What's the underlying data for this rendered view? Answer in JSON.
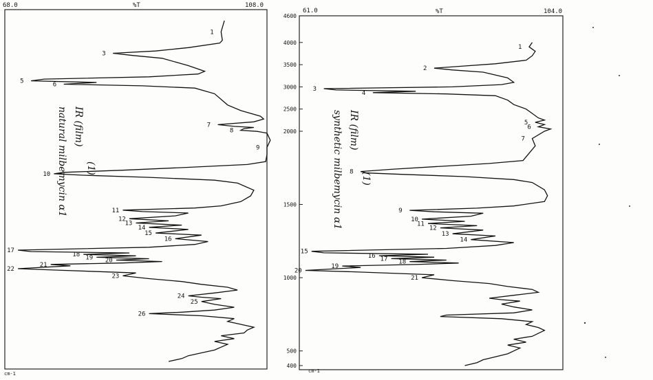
{
  "chart_data": [
    {
      "type": "line",
      "orientation": "vertical-spectrum",
      "x_axis": {
        "label": "%T",
        "min_label": "68.0",
        "max_label": "108.0",
        "range": [
          68.0,
          108.0
        ]
      },
      "unit_label": "cm-1",
      "handwritten_note": [
        "IR (film)",
        "natural milbemycin α1",
        "(1)"
      ],
      "series": [
        {
          "points": [
            [
              4000,
              101.5
            ],
            [
              3800,
              101.0
            ],
            [
              3650,
              101.2
            ],
            [
              3600,
              100.8
            ],
            [
              3520,
              96.0
            ],
            [
              3460,
              91.0
            ],
            [
              3420,
              84.5
            ],
            [
              3380,
              87.5
            ],
            [
              3330,
              92.0
            ],
            [
              3200,
              96.0
            ],
            [
              3100,
              98.5
            ],
            [
              3050,
              97.5
            ],
            [
              3000,
              90.0
            ],
            [
              2960,
              74.0
            ],
            [
              2930,
              72.0
            ],
            [
              2900,
              82.0
            ],
            [
              2870,
              77.0
            ],
            [
              2840,
              89.0
            ],
            [
              2800,
              97.0
            ],
            [
              2700,
              100.0
            ],
            [
              2500,
              102.0
            ],
            [
              2400,
              104.0
            ],
            [
              2300,
              107.0
            ],
            [
              2250,
              107.5
            ],
            [
              2200,
              106.0
            ],
            [
              2150,
              100.5
            ],
            [
              2120,
              103.0
            ],
            [
              2100,
              106.0
            ],
            [
              2080,
              104.5
            ],
            [
              2050,
              104.0
            ],
            [
              2030,
              106.5
            ],
            [
              2000,
              108.0
            ],
            [
              1950,
              108.5
            ],
            [
              1900,
              108.0
            ],
            [
              1850,
              108.0
            ],
            [
              1800,
              107.8
            ],
            [
              1780,
              105.0
            ],
            [
              1760,
              96.0
            ],
            [
              1740,
              86.0
            ],
            [
              1725,
              77.0
            ],
            [
              1715,
              75.5
            ],
            [
              1705,
              80.0
            ],
            [
              1690,
              90.0
            ],
            [
              1670,
              100.0
            ],
            [
              1650,
              103.5
            ],
            [
              1600,
              106.0
            ],
            [
              1560,
              105.5
            ],
            [
              1520,
              104.0
            ],
            [
              1490,
              101.0
            ],
            [
              1475,
              97.0
            ],
            [
              1460,
              86.0
            ],
            [
              1450,
              89.0
            ],
            [
              1440,
              96.0
            ],
            [
              1420,
              94.0
            ],
            [
              1400,
              87.0
            ],
            [
              1385,
              93.0
            ],
            [
              1370,
              88.0
            ],
            [
              1355,
              95.0
            ],
            [
              1340,
              90.0
            ],
            [
              1325,
              96.0
            ],
            [
              1300,
              91.0
            ],
            [
              1285,
              98.0
            ],
            [
              1260,
              94.0
            ],
            [
              1240,
              99.0
            ],
            [
              1220,
              97.0
            ],
            [
              1200,
              90.0
            ],
            [
              1180,
              70.0
            ],
            [
              1170,
              72.0
            ],
            [
              1160,
              87.0
            ],
            [
              1150,
              80.0
            ],
            [
              1140,
              88.0
            ],
            [
              1130,
              82.0
            ],
            [
              1120,
              90.0
            ],
            [
              1110,
              85.0
            ],
            [
              1100,
              92.0
            ],
            [
              1090,
              86.0
            ],
            [
              1080,
              75.0
            ],
            [
              1070,
              78.0
            ],
            [
              1050,
              70.0
            ],
            [
              1040,
              76.0
            ],
            [
              1020,
              88.0
            ],
            [
              1000,
              86.0
            ],
            [
              980,
              90.0
            ],
            [
              960,
              95.0
            ],
            [
              940,
              98.0
            ],
            [
              920,
              102.0
            ],
            [
              900,
              103.5
            ],
            [
              880,
              100.0
            ],
            [
              860,
              96.0
            ],
            [
              850,
              98.0
            ],
            [
              840,
              101.0
            ],
            [
              820,
              98.0
            ],
            [
              800,
              100.0
            ],
            [
              780,
              103.0
            ],
            [
              760,
              100.0
            ],
            [
              745,
              95.0
            ],
            [
              735,
              90.0
            ],
            [
              720,
              98.0
            ],
            [
              700,
              103.0
            ],
            [
              680,
              102.0
            ],
            [
              660,
              104.0
            ],
            [
              640,
              106.0
            ],
            [
              620,
              105.0
            ],
            [
              600,
              104.5
            ],
            [
              580,
              101.0
            ],
            [
              560,
              103.0
            ],
            [
              540,
              100.0
            ],
            [
              520,
              102.0
            ],
            [
              500,
              101.0
            ],
            [
              480,
              100.0
            ],
            [
              460,
              98.0
            ],
            [
              440,
              96.0
            ],
            [
              420,
              95.0
            ],
            [
              400,
              93.0
            ]
          ]
        }
      ],
      "peak_labels": [
        "1",
        "3",
        "5",
        "6",
        "7",
        "8",
        "9",
        "10",
        "11",
        "12",
        "13",
        "14",
        "15",
        "16",
        "17",
        "18",
        "19",
        "20",
        "21",
        "22",
        "23",
        "24",
        "25",
        "26"
      ]
    },
    {
      "type": "line",
      "orientation": "vertical-spectrum",
      "x_axis": {
        "label": "%T",
        "min_label": "61.0",
        "max_label": "104.0",
        "range": [
          61.0,
          104.0
        ]
      },
      "y_axis": {
        "ticks": [
          4600,
          4000,
          3500,
          3000,
          2500,
          2000,
          1500,
          1000,
          500,
          400
        ],
        "tick_labels": [
          "4600",
          "4000",
          "3500",
          "3000",
          "2500",
          "2000",
          "1500",
          "1000",
          "500",
          "400"
        ]
      },
      "unit_label": "cm-1",
      "handwritten_note": [
        "IR (film)",
        "synthetic milbemycin α1",
        "(1)"
      ],
      "series": [
        {
          "points": [
            [
              4000,
              99.0
            ],
            [
              3900,
              98.5
            ],
            [
              3800,
              99.5
            ],
            [
              3700,
              99.0
            ],
            [
              3600,
              98.0
            ],
            [
              3520,
              93.0
            ],
            [
              3460,
              87.0
            ],
            [
              3420,
              83.0
            ],
            [
              3380,
              86.0
            ],
            [
              3330,
              91.0
            ],
            [
              3200,
              95.0
            ],
            [
              3100,
              96.0
            ],
            [
              3050,
              94.0
            ],
            [
              3000,
              86.0
            ],
            [
              2960,
              65.0
            ],
            [
              2930,
              67.0
            ],
            [
              2900,
              80.0
            ],
            [
              2870,
              73.0
            ],
            [
              2840,
              85.0
            ],
            [
              2800,
              93.0
            ],
            [
              2700,
              95.0
            ],
            [
              2600,
              96.0
            ],
            [
              2500,
              98.0
            ],
            [
              2400,
              99.0
            ],
            [
              2300,
              100.0
            ],
            [
              2250,
              101.0
            ],
            [
              2200,
              99.5
            ],
            [
              2150,
              101.0
            ],
            [
              2100,
              100.0
            ],
            [
              2050,
              102.0
            ],
            [
              2000,
              101.0
            ],
            [
              1950,
              99.0
            ],
            [
              1900,
              99.5
            ],
            [
              1850,
              98.5
            ],
            [
              1800,
              97.5
            ],
            [
              1780,
              92.0
            ],
            [
              1760,
              84.0
            ],
            [
              1740,
              76.0
            ],
            [
              1725,
              71.0
            ],
            [
              1715,
              72.0
            ],
            [
              1705,
              78.0
            ],
            [
              1690,
              88.0
            ],
            [
              1670,
              96.0
            ],
            [
              1650,
              99.0
            ],
            [
              1600,
              101.0
            ],
            [
              1560,
              101.5
            ],
            [
              1520,
              101.0
            ],
            [
              1490,
              96.0
            ],
            [
              1475,
              90.0
            ],
            [
              1460,
              79.0
            ],
            [
              1450,
              83.0
            ],
            [
              1440,
              91.0
            ],
            [
              1420,
              89.0
            ],
            [
              1400,
              81.0
            ],
            [
              1385,
              88.0
            ],
            [
              1370,
              82.0
            ],
            [
              1355,
              90.0
            ],
            [
              1340,
              84.0
            ],
            [
              1325,
              91.0
            ],
            [
              1300,
              86.0
            ],
            [
              1285,
              93.0
            ],
            [
              1260,
              89.0
            ],
            [
              1240,
              96.0
            ],
            [
              1220,
              93.0
            ],
            [
              1200,
              85.0
            ],
            [
              1180,
              63.0
            ],
            [
              1170,
              65.0
            ],
            [
              1160,
              82.0
            ],
            [
              1150,
              74.0
            ],
            [
              1140,
              83.0
            ],
            [
              1130,
              76.0
            ],
            [
              1120,
              85.0
            ],
            [
              1110,
              79.0
            ],
            [
              1100,
              87.0
            ],
            [
              1090,
              80.0
            ],
            [
              1080,
              68.0
            ],
            [
              1070,
              71.0
            ],
            [
              1050,
              62.0
            ],
            [
              1040,
              70.0
            ],
            [
              1020,
              83.0
            ],
            [
              1000,
              81.0
            ],
            [
              980,
              86.0
            ],
            [
              960,
              92.0
            ],
            [
              940,
              95.0
            ],
            [
              920,
              99.0
            ],
            [
              900,
              100.0
            ],
            [
              880,
              96.0
            ],
            [
              860,
              92.0
            ],
            [
              850,
              94.0
            ],
            [
              840,
              97.0
            ],
            [
              820,
              94.0
            ],
            [
              800,
              96.0
            ],
            [
              780,
              99.0
            ],
            [
              760,
              96.0
            ],
            [
              745,
              85.0
            ],
            [
              735,
              84.0
            ],
            [
              720,
              94.0
            ],
            [
              700,
              99.0
            ],
            [
              680,
              98.0
            ],
            [
              660,
              100.0
            ],
            [
              640,
              101.0
            ],
            [
              620,
              100.0
            ],
            [
              600,
              99.0
            ],
            [
              580,
              96.0
            ],
            [
              560,
              98.0
            ],
            [
              540,
              95.0
            ],
            [
              520,
              97.0
            ],
            [
              500,
              96.0
            ],
            [
              480,
              95.0
            ],
            [
              460,
              93.0
            ],
            [
              440,
              91.0
            ],
            [
              420,
              90.0
            ],
            [
              400,
              88.0
            ]
          ]
        }
      ],
      "peak_labels": [
        "1",
        "2",
        "3",
        "4",
        "5",
        "6",
        "7",
        "8",
        "9",
        "10",
        "11",
        "12",
        "13",
        "14",
        "15",
        "16",
        "17",
        "18",
        "19",
        "20",
        "21"
      ]
    }
  ]
}
